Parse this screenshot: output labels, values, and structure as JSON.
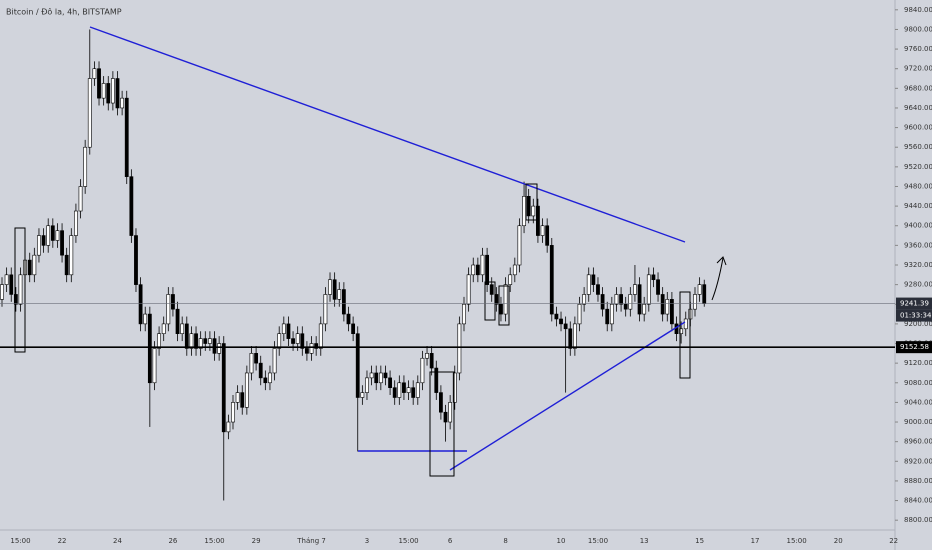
{
  "chart_data": {
    "type": "candlestick",
    "title": "Bitcoin / Đô la, 4h, BITSTAMP",
    "up_color": "#ffffff",
    "down_color": "#000000",
    "outline_color": "#000000",
    "ylim": [
      8780,
      9860
    ],
    "yticks": [
      {
        "value": 8800,
        "label": "8800.00"
      },
      {
        "value": 8840,
        "label": "8840.00"
      },
      {
        "value": 8880,
        "label": "8880.00"
      },
      {
        "value": 8920,
        "label": "8920.00"
      },
      {
        "value": 8960,
        "label": "8960.00"
      },
      {
        "value": 9000,
        "label": "9000.00"
      },
      {
        "value": 9040,
        "label": "9040.00"
      },
      {
        "value": 9080,
        "label": "9080.00"
      },
      {
        "value": 9120,
        "label": "9120.00"
      },
      {
        "value": 9160,
        "label": "9160.00"
      },
      {
        "value": 9200,
        "label": "9200.00"
      },
      {
        "value": 9240,
        "label": "9240.00"
      },
      {
        "value": 9280,
        "label": "9280.00"
      },
      {
        "value": 9320,
        "label": "9320.00"
      },
      {
        "value": 9360,
        "label": "9360.00"
      },
      {
        "value": 9400,
        "label": "9400.00"
      },
      {
        "value": 9440,
        "label": "9440.00"
      },
      {
        "value": 9480,
        "label": "9480.00"
      },
      {
        "value": 9520,
        "label": "9520.00"
      },
      {
        "value": 9560,
        "label": "9560.00"
      },
      {
        "value": 9600,
        "label": "9600.00"
      },
      {
        "value": 9640,
        "label": "9640.00"
      },
      {
        "value": 9680,
        "label": "9680.00"
      },
      {
        "value": 9720,
        "label": "9720.00"
      },
      {
        "value": 9760,
        "label": "9760.00"
      },
      {
        "value": 9800,
        "label": "9800.00"
      },
      {
        "value": 9840,
        "label": "9840.00"
      }
    ],
    "grid": false,
    "last_price": {
      "value": 9241.39,
      "label": "9241.39"
    },
    "countdown": "01:33:34",
    "horizontal_line": {
      "value": 9152.58,
      "label": "9152.58"
    },
    "categories": [
      null,
      null,
      null,
      null,
      "15:00",
      null,
      null,
      null,
      null,
      null,
      null,
      null,
      null,
      "22",
      null,
      null,
      null,
      null,
      null,
      null,
      null,
      null,
      null,
      null,
      null,
      "24",
      null,
      null,
      null,
      null,
      null,
      null,
      null,
      null,
      null,
      null,
      null,
      "26",
      null,
      null,
      null,
      null,
      null,
      null,
      null,
      null,
      "15:00",
      null,
      null,
      null,
      null,
      null,
      null,
      null,
      null,
      "29",
      null,
      null,
      null,
      null,
      null,
      null,
      null,
      null,
      null,
      null,
      null,
      "Tháng 7",
      null,
      null,
      null,
      null,
      null,
      null,
      null,
      null,
      null,
      null,
      null,
      "3",
      null,
      null,
      null,
      null,
      null,
      null,
      null,
      null,
      "15:00",
      null,
      null,
      null,
      null,
      null,
      null,
      null,
      null,
      "6",
      null,
      null,
      null,
      null,
      null,
      null,
      null,
      null,
      null,
      null,
      null,
      "8",
      null,
      null,
      null,
      null,
      null,
      null,
      null,
      null,
      null,
      null,
      null,
      "10",
      null,
      null,
      null,
      null,
      null,
      null,
      null,
      "15:00",
      null,
      null,
      null,
      null,
      null,
      null,
      null,
      null,
      null,
      "13",
      null,
      null,
      null,
      null,
      null,
      null,
      null,
      null,
      null,
      null,
      null,
      "15",
      null,
      null,
      null,
      null,
      null,
      null,
      null,
      null,
      null,
      null,
      null,
      "17",
      null,
      null,
      null,
      null,
      null,
      null,
      null,
      null,
      "15:00",
      null,
      null,
      null,
      null,
      null,
      null,
      null,
      null,
      "20",
      null,
      null,
      null,
      null,
      null,
      null,
      null,
      null,
      null,
      null,
      null,
      "22"
    ],
    "values": [
      [
        9250,
        9295,
        9235,
        9280
      ],
      [
        9280,
        9315,
        9265,
        9300
      ],
      [
        9300,
        9315,
        9245,
        9260
      ],
      [
        9260,
        9275,
        9225,
        9240
      ],
      [
        9240,
        9315,
        9225,
        9300
      ],
      [
        9300,
        9345,
        9285,
        9330
      ],
      [
        9330,
        9345,
        9285,
        9300
      ],
      [
        9300,
        9355,
        9285,
        9340
      ],
      [
        9340,
        9395,
        9325,
        9380
      ],
      [
        9380,
        9395,
        9345,
        9360
      ],
      [
        9360,
        9415,
        9345,
        9400
      ],
      [
        9400,
        9415,
        9355,
        9370
      ],
      [
        9370,
        9405,
        9355,
        9390
      ],
      [
        9390,
        9405,
        9325,
        9340
      ],
      [
        9340,
        9355,
        9285,
        9300
      ],
      [
        9300,
        9395,
        9285,
        9380
      ],
      [
        9380,
        9445,
        9365,
        9430
      ],
      [
        9430,
        9495,
        9415,
        9480
      ],
      [
        9480,
        9575,
        9465,
        9560
      ],
      [
        9560,
        9800,
        9545,
        9700
      ],
      [
        9700,
        9735,
        9685,
        9720
      ],
      [
        9720,
        9735,
        9645,
        9660
      ],
      [
        9660,
        9705,
        9645,
        9690
      ],
      [
        9690,
        9705,
        9635,
        9650
      ],
      [
        9650,
        9715,
        9635,
        9700
      ],
      [
        9700,
        9715,
        9625,
        9640
      ],
      [
        9640,
        9675,
        9625,
        9660
      ],
      [
        9660,
        9675,
        9485,
        9500
      ],
      [
        9500,
        9515,
        9365,
        9380
      ],
      [
        9380,
        9395,
        9265,
        9280
      ],
      [
        9280,
        9295,
        9185,
        9200
      ],
      [
        9200,
        9235,
        9185,
        9220
      ],
      [
        9220,
        9235,
        8990,
        9080
      ],
      [
        9080,
        9165,
        9065,
        9150
      ],
      [
        9150,
        9195,
        9135,
        9180
      ],
      [
        9180,
        9215,
        9165,
        9200
      ],
      [
        9200,
        9275,
        9185,
        9260
      ],
      [
        9260,
        9275,
        9215,
        9230
      ],
      [
        9230,
        9245,
        9165,
        9180
      ],
      [
        9180,
        9215,
        9165,
        9200
      ],
      [
        9200,
        9215,
        9135,
        9150
      ],
      [
        9150,
        9195,
        9135,
        9180
      ],
      [
        9180,
        9195,
        9135,
        9150
      ],
      [
        9150,
        9185,
        9135,
        9170
      ],
      [
        9170,
        9185,
        9145,
        9160
      ],
      [
        9160,
        9185,
        9145,
        9170
      ],
      [
        9170,
        9185,
        9125,
        9140
      ],
      [
        9140,
        9175,
        9125,
        9160
      ],
      [
        9160,
        9175,
        8840,
        8980
      ],
      [
        8980,
        9015,
        8965,
        9000
      ],
      [
        9000,
        9055,
        8985,
        9040
      ],
      [
        9040,
        9075,
        9025,
        9060
      ],
      [
        9060,
        9075,
        9015,
        9030
      ],
      [
        9030,
        9115,
        9015,
        9100
      ],
      [
        9100,
        9155,
        9085,
        9140
      ],
      [
        9140,
        9155,
        9105,
        9120
      ],
      [
        9120,
        9135,
        9075,
        9090
      ],
      [
        9090,
        9105,
        9065,
        9080
      ],
      [
        9080,
        9115,
        9065,
        9100
      ],
      [
        9100,
        9165,
        9085,
        9150
      ],
      [
        9150,
        9195,
        9135,
        9180
      ],
      [
        9180,
        9215,
        9165,
        9200
      ],
      [
        9200,
        9215,
        9155,
        9170
      ],
      [
        9170,
        9185,
        9145,
        9160
      ],
      [
        9160,
        9195,
        9145,
        9180
      ],
      [
        9180,
        9195,
        9135,
        9150
      ],
      [
        9150,
        9165,
        9125,
        9140
      ],
      [
        9140,
        9175,
        9125,
        9160
      ],
      [
        9160,
        9175,
        9135,
        9150
      ],
      [
        9150,
        9215,
        9135,
        9200
      ],
      [
        9200,
        9275,
        9185,
        9260
      ],
      [
        9260,
        9305,
        9245,
        9290
      ],
      [
        9290,
        9305,
        9235,
        9250
      ],
      [
        9250,
        9285,
        9235,
        9270
      ],
      [
        9270,
        9285,
        9205,
        9220
      ],
      [
        9220,
        9235,
        9185,
        9200
      ],
      [
        9200,
        9215,
        9165,
        9180
      ],
      [
        9180,
        9195,
        8940,
        9050
      ],
      [
        9050,
        9075,
        9035,
        9060
      ],
      [
        9060,
        9105,
        9045,
        9090
      ],
      [
        9090,
        9115,
        9075,
        9100
      ],
      [
        9100,
        9115,
        9065,
        9080
      ],
      [
        9080,
        9115,
        9065,
        9100
      ],
      [
        9100,
        9115,
        9075,
        9090
      ],
      [
        9090,
        9105,
        9055,
        9070
      ],
      [
        9070,
        9085,
        9035,
        9050
      ],
      [
        9050,
        9095,
        9035,
        9080
      ],
      [
        9080,
        9095,
        9045,
        9060
      ],
      [
        9060,
        9085,
        9045,
        9070
      ],
      [
        9070,
        9085,
        9035,
        9050
      ],
      [
        9050,
        9095,
        9035,
        9080
      ],
      [
        9080,
        9145,
        9065,
        9130
      ],
      [
        9130,
        9155,
        9115,
        9140
      ],
      [
        9140,
        9155,
        9095,
        9110
      ],
      [
        9110,
        9125,
        9045,
        9060
      ],
      [
        9060,
        9075,
        9005,
        9020
      ],
      [
        9020,
        9035,
        8960,
        9000
      ],
      [
        9000,
        9055,
        8985,
        9040
      ],
      [
        9040,
        9115,
        9025,
        9100
      ],
      [
        9100,
        9215,
        9085,
        9200
      ],
      [
        9200,
        9255,
        9185,
        9240
      ],
      [
        9240,
        9315,
        9225,
        9300
      ],
      [
        9300,
        9335,
        9285,
        9320
      ],
      [
        9320,
        9335,
        9285,
        9300
      ],
      [
        9300,
        9355,
        9285,
        9340
      ],
      [
        9340,
        9355,
        9265,
        9280
      ],
      [
        9280,
        9295,
        9245,
        9260
      ],
      [
        9260,
        9275,
        9225,
        9240
      ],
      [
        9240,
        9255,
        9205,
        9220
      ],
      [
        9220,
        9295,
        9205,
        9280
      ],
      [
        9280,
        9315,
        9265,
        9300
      ],
      [
        9300,
        9335,
        9285,
        9320
      ],
      [
        9320,
        9415,
        9305,
        9400
      ],
      [
        9400,
        9490,
        9385,
        9460
      ],
      [
        9460,
        9475,
        9405,
        9420
      ],
      [
        9420,
        9455,
        9405,
        9440
      ],
      [
        9440,
        9455,
        9365,
        9380
      ],
      [
        9380,
        9415,
        9365,
        9400
      ],
      [
        9400,
        9415,
        9345,
        9360
      ],
      [
        9360,
        9375,
        9205,
        9220
      ],
      [
        9220,
        9235,
        9195,
        9210
      ],
      [
        9210,
        9225,
        9185,
        9200
      ],
      [
        9200,
        9215,
        9060,
        9190
      ],
      [
        9190,
        9205,
        9135,
        9150
      ],
      [
        9150,
        9215,
        9135,
        9200
      ],
      [
        9200,
        9255,
        9185,
        9240
      ],
      [
        9240,
        9275,
        9225,
        9260
      ],
      [
        9260,
        9315,
        9245,
        9300
      ],
      [
        9300,
        9315,
        9265,
        9280
      ],
      [
        9280,
        9295,
        9245,
        9260
      ],
      [
        9260,
        9275,
        9215,
        9230
      ],
      [
        9230,
        9245,
        9185,
        9200
      ],
      [
        9200,
        9255,
        9185,
        9240
      ],
      [
        9240,
        9275,
        9225,
        9260
      ],
      [
        9260,
        9275,
        9225,
        9240
      ],
      [
        9240,
        9255,
        9215,
        9230
      ],
      [
        9230,
        9275,
        9215,
        9260
      ],
      [
        9260,
        9320,
        9245,
        9280
      ],
      [
        9280,
        9295,
        9205,
        9220
      ],
      [
        9220,
        9255,
        9205,
        9240
      ],
      [
        9240,
        9315,
        9225,
        9300
      ],
      [
        9300,
        9315,
        9275,
        9290
      ],
      [
        9290,
        9305,
        9245,
        9260
      ],
      [
        9260,
        9275,
        9205,
        9220
      ],
      [
        9220,
        9265,
        9205,
        9250
      ],
      [
        9250,
        9265,
        9185,
        9200
      ],
      [
        9200,
        9215,
        9165,
        9180
      ],
      [
        9180,
        9205,
        9160,
        9190
      ],
      [
        9190,
        9225,
        9175,
        9210
      ],
      [
        9210,
        9245,
        9195,
        9230
      ],
      [
        9230,
        9275,
        9215,
        9260
      ],
      [
        9260,
        9295,
        9245,
        9280
      ],
      [
        9280,
        9290,
        9235,
        9241.39
      ],
      null,
      null,
      null,
      null,
      null,
      null,
      null,
      null,
      null,
      null,
      null,
      null,
      null,
      null,
      null,
      null,
      null,
      null,
      null,
      null,
      null,
      null,
      null,
      null,
      null,
      null,
      null,
      null,
      null,
      null,
      null,
      null,
      null,
      null,
      null,
      null,
      null,
      null,
      null,
      null,
      null
    ]
  }
}
